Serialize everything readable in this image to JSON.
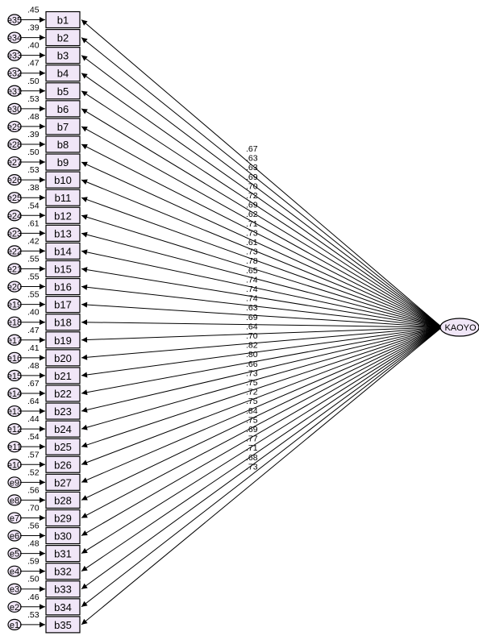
{
  "latent": {
    "label": "KAOYO"
  },
  "items": [
    {
      "label": "b1",
      "error": "e35",
      "r2": ".45",
      "loading": ".67"
    },
    {
      "label": "b2",
      "error": "e34",
      "r2": ".39",
      "loading": ".63"
    },
    {
      "label": "b3",
      "error": "e33",
      "r2": ".40",
      "loading": ".63"
    },
    {
      "label": "b4",
      "error": "e32",
      "r2": ".47",
      "loading": ".69"
    },
    {
      "label": "b5",
      "error": "e31",
      "r2": ".50",
      "loading": ".70"
    },
    {
      "label": "b6",
      "error": "e30",
      "r2": ".53",
      "loading": ".72"
    },
    {
      "label": "b7",
      "error": "e29",
      "r2": ".48",
      "loading": ".69"
    },
    {
      "label": "b8",
      "error": "e28",
      "r2": ".39",
      "loading": ".62"
    },
    {
      "label": "b9",
      "error": "e27",
      "r2": ".50",
      "loading": ".71"
    },
    {
      "label": "b10",
      "error": "e26",
      "r2": ".53",
      "loading": ".73"
    },
    {
      "label": "b11",
      "error": "e25",
      "r2": ".38",
      "loading": ".61"
    },
    {
      "label": "b12",
      "error": "e24",
      "r2": ".54",
      "loading": ".73"
    },
    {
      "label": "b13",
      "error": "e23",
      "r2": ".61",
      "loading": ".78"
    },
    {
      "label": "b14",
      "error": "e22",
      "r2": ".42",
      "loading": ".65"
    },
    {
      "label": "b15",
      "error": "e21",
      "r2": ".55",
      "loading": ".74"
    },
    {
      "label": "b16",
      "error": "e20",
      "r2": ".55",
      "loading": ".74"
    },
    {
      "label": "b17",
      "error": "e19",
      "r2": ".55",
      "loading": ".74"
    },
    {
      "label": "b18",
      "error": "e18",
      "r2": ".40",
      "loading": ".63"
    },
    {
      "label": "b19",
      "error": "e17",
      "r2": ".47",
      "loading": ".69"
    },
    {
      "label": "b20",
      "error": "e16",
      "r2": ".41",
      "loading": ".64"
    },
    {
      "label": "b21",
      "error": "e15",
      "r2": ".48",
      "loading": ".70"
    },
    {
      "label": "b22",
      "error": "e14",
      "r2": ".67",
      "loading": ".82"
    },
    {
      "label": "b23",
      "error": "e13",
      "r2": ".64",
      "loading": ".80"
    },
    {
      "label": "b24",
      "error": "e12",
      "r2": ".44",
      "loading": ".66"
    },
    {
      "label": "b25",
      "error": "e11",
      "r2": ".54",
      "loading": ".73"
    },
    {
      "label": "b26",
      "error": "e10",
      "r2": ".57",
      "loading": ".75"
    },
    {
      "label": "b27",
      "error": "e9",
      "r2": ".52",
      "loading": ".72"
    },
    {
      "label": "b28",
      "error": "e8",
      "r2": ".56",
      "loading": ".75"
    },
    {
      "label": "b29",
      "error": "e7",
      "r2": ".70",
      "loading": ".84"
    },
    {
      "label": "b30",
      "error": "e6",
      "r2": ".56",
      "loading": ".75"
    },
    {
      "label": "b31",
      "error": "e5",
      "r2": ".48",
      "loading": ".69"
    },
    {
      "label": "b32",
      "error": "e4",
      "r2": ".59",
      "loading": ".77"
    },
    {
      "label": "b33",
      "error": "e3",
      "r2": ".50",
      "loading": ".71"
    },
    {
      "label": "b34",
      "error": "e2",
      "r2": ".46",
      "loading": ".68"
    },
    {
      "label": "b35",
      "error": "e1",
      "r2": ".53",
      "loading": ".73"
    }
  ]
}
